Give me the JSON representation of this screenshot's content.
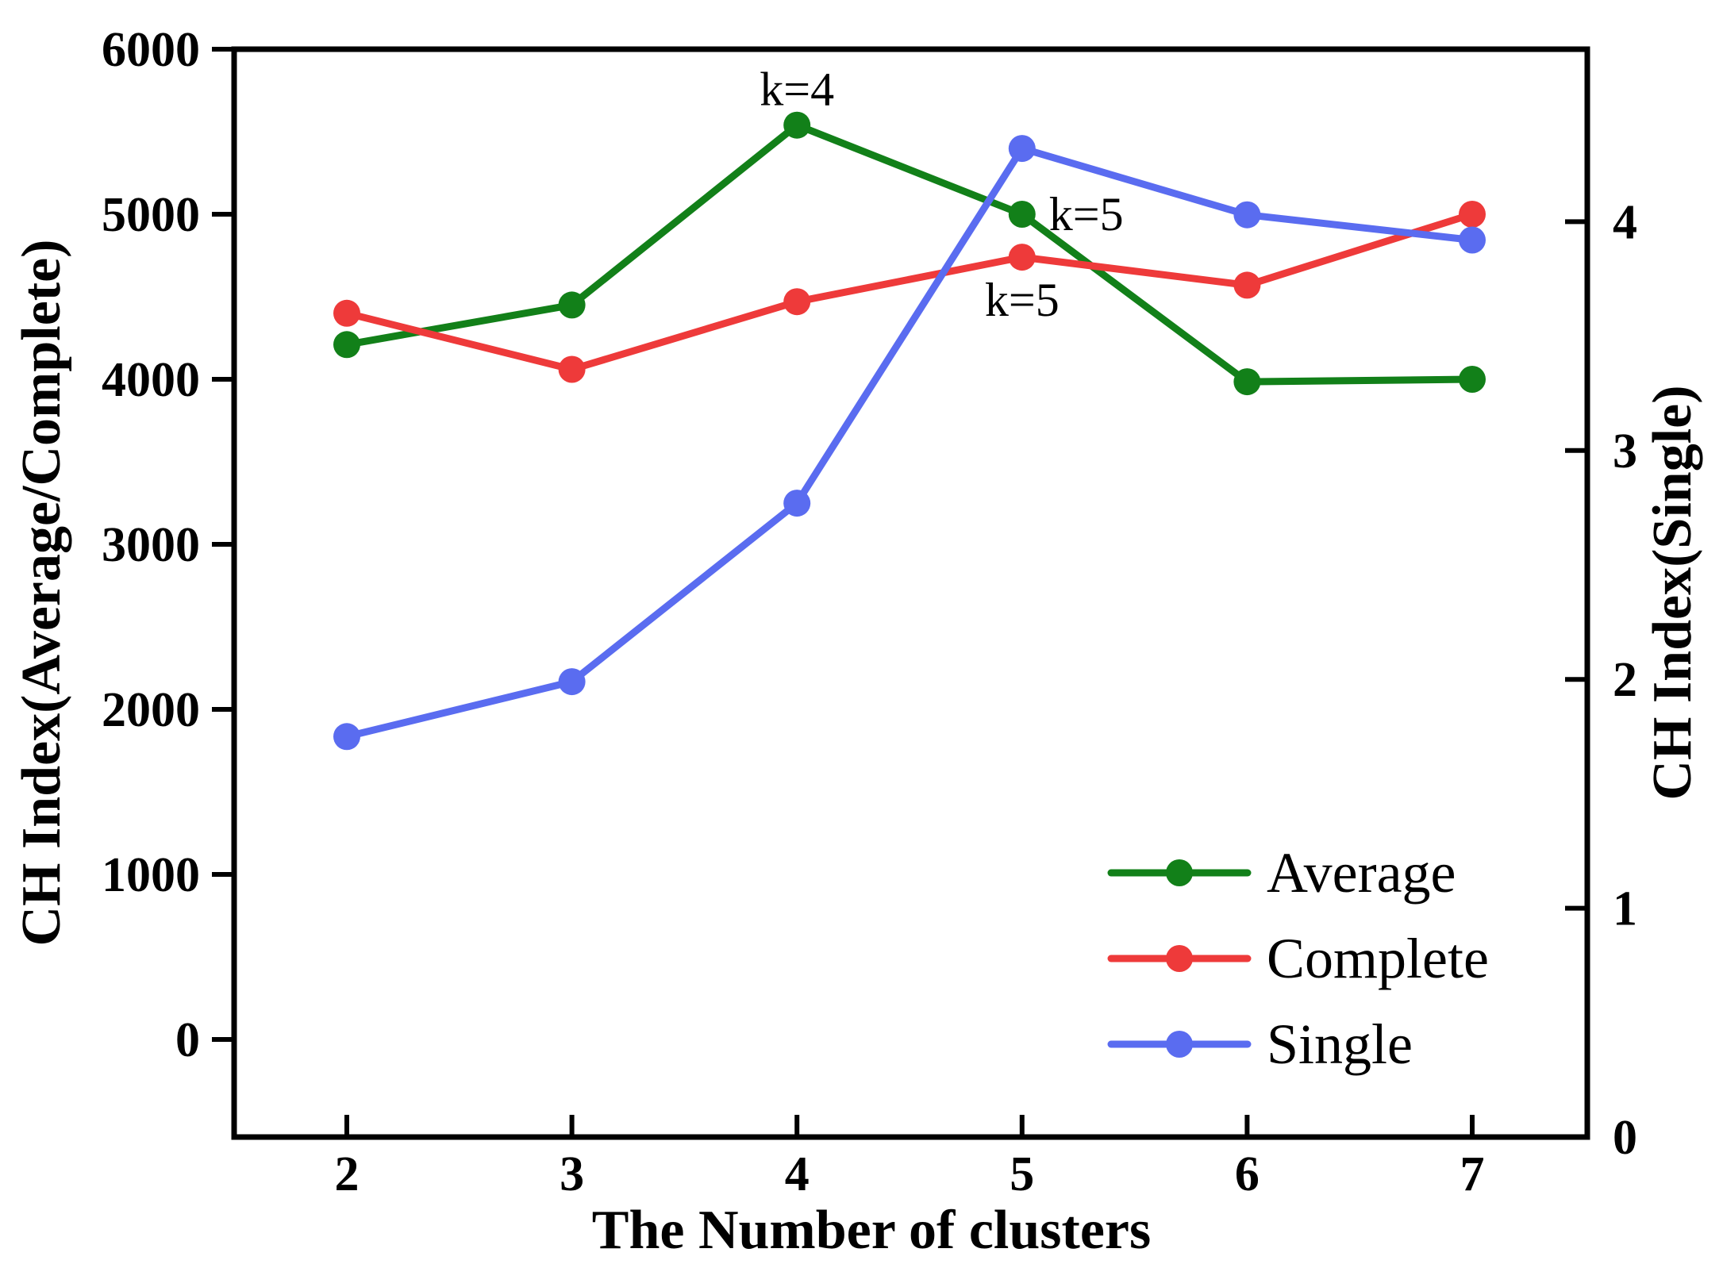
{
  "chart_data": {
    "type": "line",
    "title": "",
    "x": [
      2,
      3,
      4,
      5,
      6,
      7
    ],
    "x_axis": {
      "label": "The Number of clusters",
      "ticks": [
        2,
        3,
        4,
        5,
        6,
        7
      ]
    },
    "left_axis": {
      "label": "CH Index(Average/Complete)",
      "ticks": [
        0,
        1000,
        2000,
        3000,
        4000,
        5000,
        6000
      ],
      "ylim": [
        0,
        6000
      ]
    },
    "right_axis": {
      "label": "CH Index(Single)",
      "ticks": [
        0,
        1,
        2,
        3,
        4
      ],
      "ylim": [
        0,
        4.75
      ]
    },
    "series": [
      {
        "name": "Average",
        "axis": "left",
        "color": "#128019",
        "values": [
          4210,
          4450,
          5540,
          5000,
          3985,
          4000
        ]
      },
      {
        "name": "Complete",
        "axis": "left",
        "color": "#ee3a3a",
        "values": [
          4400,
          4060,
          4470,
          4740,
          4570,
          5000
        ]
      },
      {
        "name": "Single",
        "axis": "right",
        "color": "#5a6cf0",
        "values": [
          1.75,
          1.99,
          2.77,
          4.32,
          4.03,
          3.92
        ]
      }
    ],
    "annotations": [
      {
        "text": "k=4",
        "series": "Average",
        "x": 4,
        "placement": "above"
      },
      {
        "text": "k=5",
        "series": "Average",
        "x": 5,
        "placement": "right"
      },
      {
        "text": "k=5",
        "series": "Complete",
        "x": 5,
        "placement": "below"
      }
    ],
    "legend": {
      "position": "lower right",
      "entries": [
        "Average",
        "Complete",
        "Single"
      ]
    },
    "grid": false
  },
  "colors": {
    "axis": "#000000",
    "background": "#ffffff",
    "text": "#000000"
  }
}
